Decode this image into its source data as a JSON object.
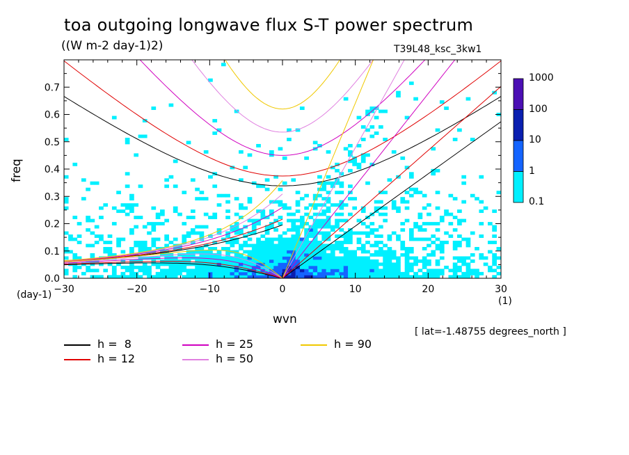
{
  "chart_data": {
    "type": "heatmap",
    "title": "toa outgoing longwave flux S-T power spectrum",
    "units": "((W m-2 day-1)2)",
    "run_label": "T39L48_ksc_3kw1",
    "xlabel": "wvn",
    "ylabel": "freq",
    "x_unit": "(1)",
    "y_unit": "(day-1)",
    "xlim": [
      -30,
      30
    ],
    "ylim": [
      0,
      0.8
    ],
    "xticks": [
      "-30",
      "-20",
      "-10",
      "0",
      "10",
      "20",
      "30"
    ],
    "yticks": [
      "0.0",
      "0.1",
      "0.2",
      "0.3",
      "0.4",
      "0.5",
      "0.6",
      "0.7"
    ],
    "note": "[ lat=-1.48755 degrees_north ]",
    "colorbar": {
      "labels": [
        "1000",
        "100",
        "10",
        "1",
        "0.1"
      ],
      "colors": [
        "#4b0fb4",
        "#0a1fb0",
        "#1464ff",
        "#00f0ff"
      ]
    },
    "dispersion_curves": [
      {
        "label": "h =  8",
        "h": 8,
        "color": "#000000"
      },
      {
        "label": "h = 12",
        "h": 12,
        "color": "#e00000"
      },
      {
        "label": "h = 25",
        "h": 25,
        "color": "#d000c0"
      },
      {
        "label": "h = 50",
        "h": 50,
        "color": "#e080e0"
      },
      {
        "label": "h = 90",
        "h": 90,
        "color": "#f0c800"
      }
    ]
  }
}
